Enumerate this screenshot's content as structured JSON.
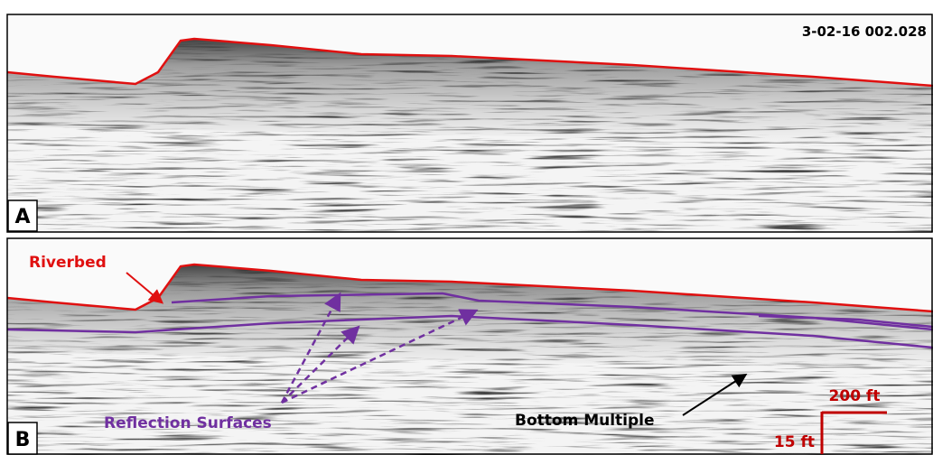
{
  "panels": [
    {
      "label": "A",
      "file_id": "3-02-16 002.028"
    },
    {
      "label": "B"
    }
  ],
  "annotations": {
    "riverbed": "Riverbed",
    "reflection_surfaces": "Reflection Surfaces",
    "bottom_multiple": "Bottom Multiple"
  },
  "scale_bar": {
    "horizontal": "200 ft",
    "vertical": "15 ft"
  }
}
